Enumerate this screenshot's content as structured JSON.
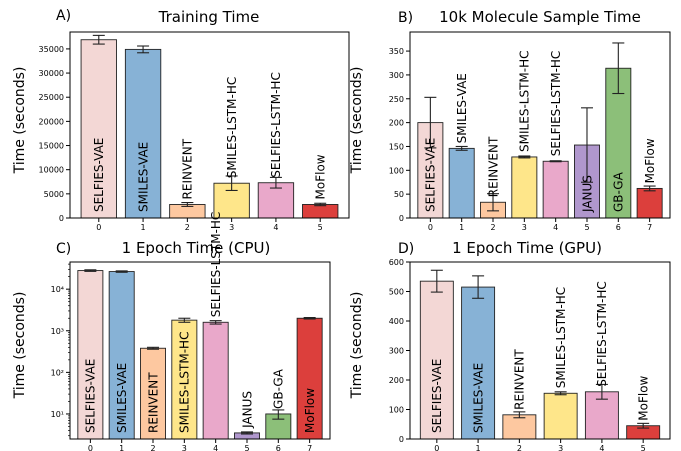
{
  "figure": {
    "ylabel": "Time (seconds)"
  },
  "colors": {
    "pink": "#f3d7d5",
    "blue": "#87b2d6",
    "orange": "#fdc8a0",
    "yellow": "#fee68a",
    "mauve": "#e9a8ca",
    "purple": "#b097cd",
    "green": "#8cbf79",
    "red": "#dc3f3c",
    "edge": "#222222"
  },
  "chart_data": [
    {
      "panel_label": "A)",
      "title": "Training Time",
      "type": "bar",
      "yscale": "linear",
      "ylim": [
        0,
        38500
      ],
      "yticks": [
        0,
        5000,
        10000,
        15000,
        20000,
        25000,
        30000,
        35000
      ],
      "ytick_labels": [
        "0",
        "5000",
        "10000",
        "15000",
        "20000",
        "25000",
        "30000",
        "35000"
      ],
      "categories": [
        "0",
        "1",
        "2",
        "3",
        "4",
        "5"
      ],
      "bar_labels": [
        "SELFIES-VAE",
        "SMILES-VAE",
        "REINVENT",
        "SMILES-LSTM-HC",
        "SELFIES-LSTM-HC",
        "MoFlow"
      ],
      "values": [
        36900,
        34900,
        2800,
        7200,
        7300,
        2800
      ],
      "errors": [
        900,
        700,
        400,
        1500,
        1100,
        250
      ],
      "colors": [
        "pink",
        "blue",
        "orange",
        "yellow",
        "mauve",
        "red"
      ]
    },
    {
      "panel_label": "B)",
      "title": "10k Molecule Sample Time",
      "type": "bar",
      "yscale": "linear",
      "ylim": [
        0,
        390
      ],
      "yticks": [
        0,
        50,
        100,
        150,
        200,
        250,
        300,
        350
      ],
      "ytick_labels": [
        "0",
        "50",
        "100",
        "150",
        "200",
        "250",
        "300",
        "350"
      ],
      "categories": [
        "0",
        "1",
        "2",
        "3",
        "4",
        "5",
        "6",
        "7"
      ],
      "bar_labels": [
        "SELFIES-VAE",
        "SMILES-VAE",
        "REINVENT",
        "SMILES-LSTM-HC",
        "SELFIES-LSTM-HC",
        "JANUS",
        "GB-GA",
        "MoFlow"
      ],
      "values": [
        200,
        146,
        33,
        128,
        119,
        153,
        314,
        62
      ],
      "errors": [
        53,
        4,
        18,
        2,
        1,
        78,
        53,
        5
      ],
      "colors": [
        "pink",
        "blue",
        "orange",
        "yellow",
        "mauve",
        "purple",
        "green",
        "red"
      ]
    },
    {
      "panel_label": "C)",
      "title": "1 Epoch Time (CPU)",
      "type": "bar",
      "yscale": "log",
      "ylim": [
        2.5,
        45000
      ],
      "yticks": [
        10,
        100,
        1000,
        10000
      ],
      "ytick_labels": [
        "10¹",
        "10²",
        "10³",
        "10⁴"
      ],
      "categories": [
        "0",
        "1",
        "2",
        "3",
        "4",
        "5",
        "6",
        "7"
      ],
      "bar_labels": [
        "SELFIES-VAE",
        "SMILES-VAE",
        "REINVENT",
        "SMILES-LSTM-HC",
        "SELFIES-LSTM-HC",
        "JANUS",
        "GB-GA",
        "MoFlow"
      ],
      "values": [
        28000,
        26500,
        380,
        1800,
        1600,
        3.5,
        10,
        2000
      ],
      "errors": [
        1200,
        1000,
        20,
        200,
        150,
        0.2,
        2.5,
        80
      ],
      "colors": [
        "pink",
        "blue",
        "orange",
        "yellow",
        "mauve",
        "purple",
        "green",
        "red"
      ]
    },
    {
      "panel_label": "D)",
      "title": "1 Epoch Time (GPU)",
      "type": "bar",
      "yscale": "linear",
      "ylim": [
        0,
        600
      ],
      "yticks": [
        0,
        100,
        200,
        300,
        400,
        500,
        600
      ],
      "ytick_labels": [
        "0",
        "100",
        "200",
        "300",
        "400",
        "500",
        "600"
      ],
      "categories": [
        "0",
        "1",
        "2",
        "3",
        "4",
        "5"
      ],
      "bar_labels": [
        "SELFIES-VAE",
        "SMILES-VAE",
        "REINVENT",
        "SMILES-LSTM-HC",
        "SELFIES-LSTM-HC",
        "MoFlow"
      ],
      "values": [
        535,
        515,
        82,
        155,
        160,
        45
      ],
      "errors": [
        37,
        38,
        10,
        5,
        25,
        8
      ],
      "colors": [
        "pink",
        "blue",
        "orange",
        "yellow",
        "mauve",
        "red"
      ]
    }
  ]
}
